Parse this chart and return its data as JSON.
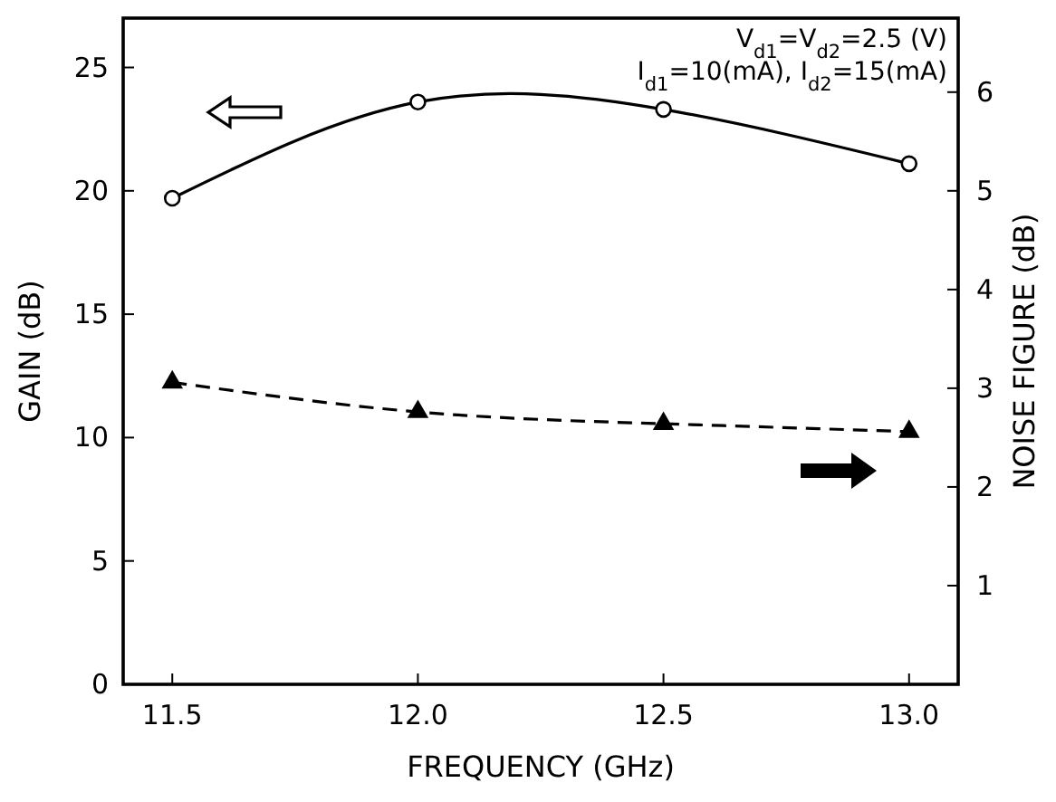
{
  "chart_data": {
    "type": "line",
    "xlabel": "FREQUENCY (GHz)",
    "ylabel": "GAIN (dB)",
    "y2label": "NOISE FIGURE (dB)",
    "x": [
      11.5,
      12.0,
      12.5,
      13.0
    ],
    "series": [
      {
        "color": "#000000",
        "values": [
          19.7,
          23.6,
          23.3,
          21.1
        ],
        "marker": "circle",
        "line_style": "solid"
      },
      {
        "color": "#000000",
        "values": [
          3.06,
          2.76,
          2.64,
          2.56
        ],
        "marker": "triangle",
        "line_style": "dashed",
        "axis": "y2"
      }
    ],
    "xlim": [
      11.4,
      13.1
    ],
    "xticks": [
      11.5,
      {
        "value": 12,
        "label": "12.0"
      },
      12.5,
      {
        "value": 13,
        "label": "13.0"
      }
    ],
    "ylim": [
      0,
      27
    ],
    "yticks": [
      0,
      5,
      10,
      15,
      20,
      25
    ],
    "y2lim": [
      0,
      6.75
    ],
    "y2ticks": [
      1,
      2,
      3,
      4,
      5,
      6
    ],
    "annotations": [
      "V$_{d1}$=V$_{d2}$=2.5 (V)",
      "I$_{d1}$=10(mA), I$_{d2}$=15(mA)"
    ]
  }
}
